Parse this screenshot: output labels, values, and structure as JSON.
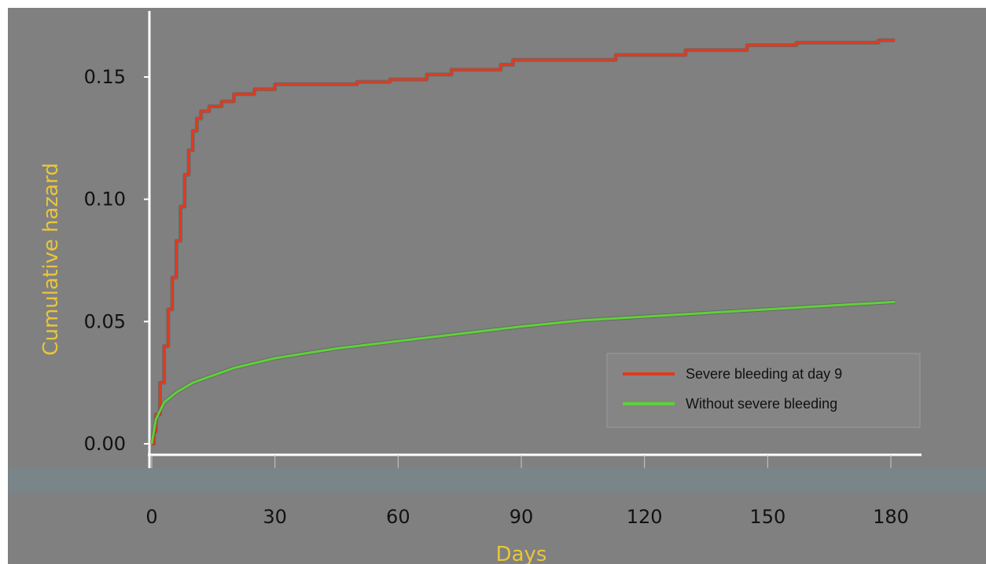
{
  "chart_data": {
    "type": "line",
    "xlabel": "Days",
    "ylabel": "Cumulative hazard",
    "xlim": [
      0,
      180
    ],
    "ylim": [
      0,
      0.16
    ],
    "x_ticks": [
      "0",
      "30",
      "60",
      "90",
      "120",
      "150",
      "180"
    ],
    "y_ticks": [
      "0.00",
      "0.05",
      "0.10",
      "0.15"
    ],
    "grid": false,
    "legend_position": "lower-right",
    "series": [
      {
        "name": "Severe bleeding at day 9",
        "color": "#e03a1e",
        "step": true,
        "points": [
          [
            0,
            0.0
          ],
          [
            0.5,
            0.005
          ],
          [
            1,
            0.012
          ],
          [
            2,
            0.025
          ],
          [
            3,
            0.04
          ],
          [
            4,
            0.055
          ],
          [
            5,
            0.068
          ],
          [
            6,
            0.083
          ],
          [
            7,
            0.097
          ],
          [
            8,
            0.11
          ],
          [
            9,
            0.12
          ],
          [
            10,
            0.128
          ],
          [
            11,
            0.133
          ],
          [
            12,
            0.136
          ],
          [
            14,
            0.138
          ],
          [
            17,
            0.14
          ],
          [
            20,
            0.143
          ],
          [
            25,
            0.145
          ],
          [
            30,
            0.147
          ],
          [
            50,
            0.148
          ],
          [
            58,
            0.149
          ],
          [
            67,
            0.151
          ],
          [
            73,
            0.153
          ],
          [
            85,
            0.155
          ],
          [
            88,
            0.157
          ],
          [
            113,
            0.159
          ],
          [
            130,
            0.161
          ],
          [
            145,
            0.163
          ],
          [
            157,
            0.164
          ],
          [
            168,
            0.164
          ],
          [
            177,
            0.165
          ],
          [
            181,
            0.165
          ]
        ]
      },
      {
        "name": "Without severe bleeding",
        "color": "#5fd03a",
        "step": false,
        "points": [
          [
            0,
            0.0
          ],
          [
            1,
            0.01
          ],
          [
            3,
            0.017
          ],
          [
            6,
            0.021
          ],
          [
            10,
            0.025
          ],
          [
            15,
            0.028
          ],
          [
            20,
            0.031
          ],
          [
            30,
            0.035
          ],
          [
            45,
            0.039
          ],
          [
            60,
            0.042
          ],
          [
            75,
            0.045
          ],
          [
            90,
            0.048
          ],
          [
            105,
            0.0505
          ],
          [
            120,
            0.052
          ],
          [
            135,
            0.0535
          ],
          [
            150,
            0.055
          ],
          [
            165,
            0.0565
          ],
          [
            181,
            0.058
          ]
        ]
      }
    ]
  }
}
